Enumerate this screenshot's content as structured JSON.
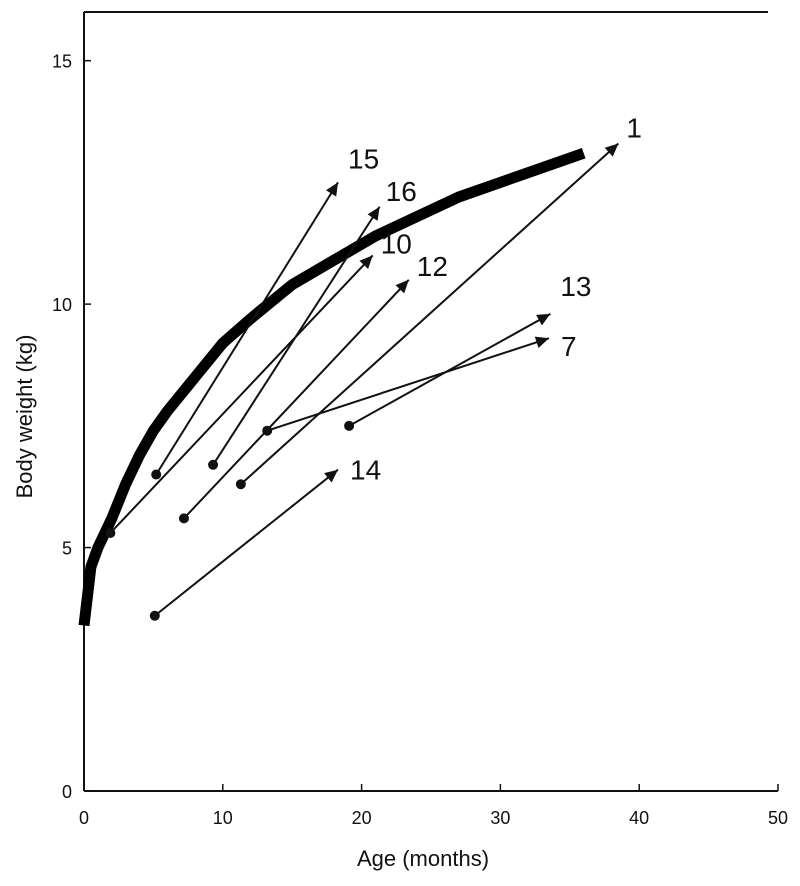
{
  "chart_data": {
    "type": "line",
    "title": "",
    "xlabel": "Age (months)",
    "ylabel": "Body weight (kg)",
    "xlim": [
      0,
      50
    ],
    "ylim": [
      0,
      16
    ],
    "xticks": [
      0,
      10,
      20,
      30,
      40,
      50
    ],
    "yticks": [
      0,
      5,
      10,
      15
    ],
    "grid": false,
    "reference_curve": {
      "points": [
        [
          0,
          3.4
        ],
        [
          0.5,
          4.6
        ],
        [
          1,
          5.0
        ],
        [
          2,
          5.6
        ],
        [
          3,
          6.3
        ],
        [
          4,
          6.9
        ],
        [
          5,
          7.4
        ],
        [
          6,
          7.8
        ],
        [
          8,
          8.5
        ],
        [
          10,
          9.2
        ],
        [
          12,
          9.7
        ],
        [
          15,
          10.4
        ],
        [
          18,
          10.9
        ],
        [
          21,
          11.4
        ],
        [
          24,
          11.8
        ],
        [
          27,
          12.2
        ],
        [
          30,
          12.5
        ],
        [
          33,
          12.8
        ],
        [
          36,
          13.1
        ]
      ]
    },
    "series": [
      {
        "name": "15",
        "start": [
          5.2,
          6.5
        ],
        "end": [
          18.3,
          12.5
        ]
      },
      {
        "name": "16",
        "start": [
          9.3,
          6.7
        ],
        "end": [
          21.3,
          12.0
        ]
      },
      {
        "name": "10",
        "start": [
          1.9,
          5.3
        ],
        "end": [
          20.8,
          11.0
        ]
      },
      {
        "name": "12",
        "start": [
          7.2,
          5.6
        ],
        "end": [
          23.4,
          10.5
        ]
      },
      {
        "name": "1",
        "start": [
          11.3,
          6.3
        ],
        "end": [
          38.5,
          13.3
        ]
      },
      {
        "name": "13",
        "start": [
          19.1,
          7.5
        ],
        "end": [
          33.6,
          9.8
        ]
      },
      {
        "name": "7",
        "start": [
          13.2,
          7.4
        ],
        "end": [
          33.5,
          9.3
        ]
      },
      {
        "name": "14",
        "start": [
          5.1,
          3.6
        ],
        "end": [
          18.3,
          6.6
        ]
      }
    ]
  }
}
